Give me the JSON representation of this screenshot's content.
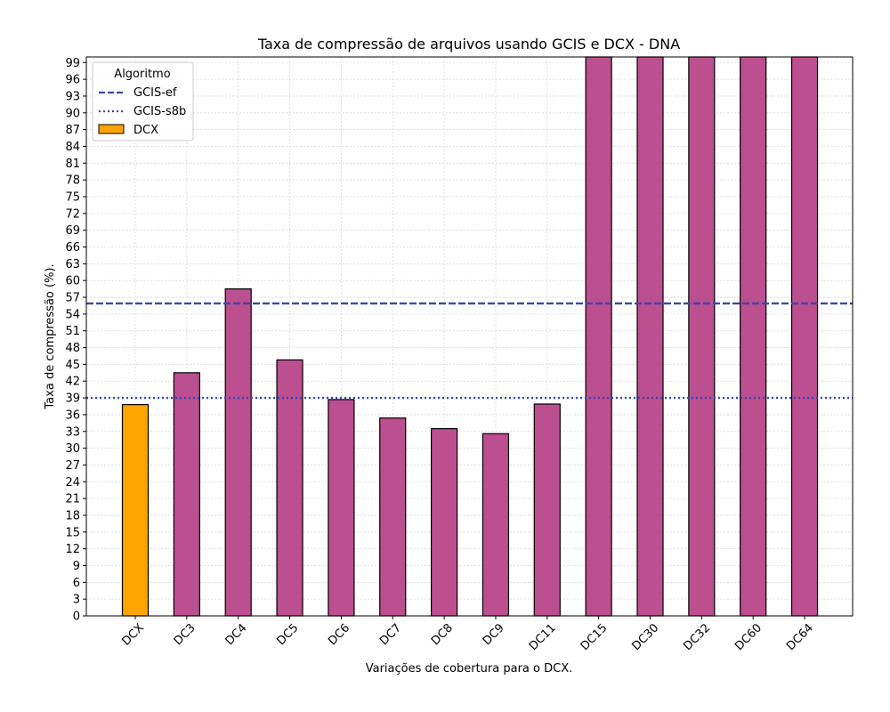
{
  "chart_data": {
    "type": "bar",
    "title": "Taxa de compressão de arquivos usando GCIS e DCX -  DNA",
    "xlabel": "Variações de cobertura para o DCX.",
    "ylabel": "Taxa de compressão (%).",
    "ylim": [
      0,
      100
    ],
    "yticks": [
      0,
      3,
      6,
      9,
      12,
      15,
      18,
      21,
      24,
      27,
      30,
      33,
      36,
      39,
      42,
      45,
      48,
      51,
      54,
      57,
      60,
      63,
      66,
      69,
      72,
      75,
      78,
      81,
      84,
      87,
      90,
      93,
      96,
      99
    ],
    "categories": [
      "DCX",
      "DC3",
      "DC4",
      "DC5",
      "DC6",
      "DC7",
      "DC8",
      "DC9",
      "DC11",
      "DC15",
      "DC30",
      "DC32",
      "DC60",
      "DC64"
    ],
    "values": [
      37.8,
      43.5,
      58.5,
      45.8,
      38.7,
      35.4,
      33.5,
      32.6,
      37.9,
      100,
      100,
      100,
      100,
      100
    ],
    "bar_colors": [
      "#ffa500",
      "#bc4f8f",
      "#bc4f8f",
      "#bc4f8f",
      "#bc4f8f",
      "#bc4f8f",
      "#bc4f8f",
      "#bc4f8f",
      "#bc4f8f",
      "#bc4f8f",
      "#bc4f8f",
      "#bc4f8f",
      "#bc4f8f",
      "#bc4f8f"
    ],
    "reference_lines": [
      {
        "name": "GCIS-ef",
        "value": 55.9,
        "style": "dashed",
        "color": "#3a47b0"
      },
      {
        "name": "GCIS-s8b",
        "value": 39.0,
        "style": "dotted",
        "color": "#3a47b0"
      }
    ],
    "legend": {
      "title": "Algoritmo",
      "placement": "top-left",
      "entries": [
        {
          "label": "GCIS-ef",
          "kind": "dashed-line",
          "color": "#3a47b0"
        },
        {
          "label": "GCIS-s8b",
          "kind": "dotted-line",
          "color": "#3a47b0"
        },
        {
          "label": "DCX",
          "kind": "patch",
          "color": "#ffa500"
        }
      ]
    },
    "grid": true
  }
}
